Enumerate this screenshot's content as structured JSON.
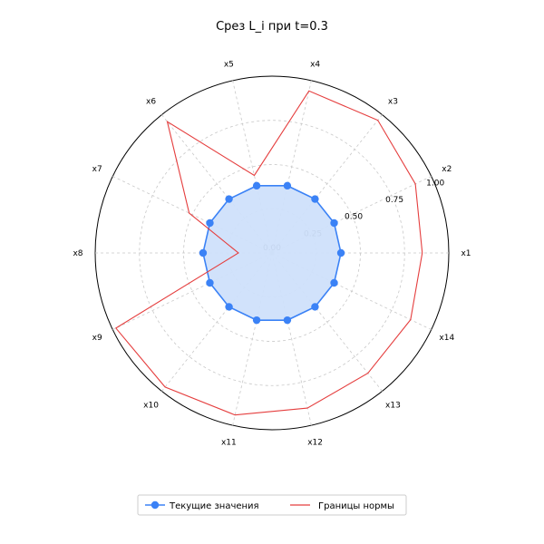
{
  "chart_data": {
    "type": "radar",
    "title": "Срез L_i при t=0.3",
    "categories": [
      "x1",
      "x2",
      "x3",
      "x4",
      "x5",
      "x6",
      "x7",
      "x8",
      "x9",
      "x10",
      "x11",
      "x12",
      "x13",
      "x14"
    ],
    "radial_ticks": [
      0.0,
      0.25,
      0.5,
      0.75,
      1.0
    ],
    "radial_tick_labels": [
      "0.00",
      "0.25",
      "0.50",
      "0.75",
      "1.00"
    ],
    "rlim": [
      0,
      1.0
    ],
    "grid": true,
    "legend_position": "bottom-center",
    "series": [
      {
        "name": "Текущие значения",
        "style": "line-markers-filled",
        "color": "#3b82f6",
        "fill": "#cfe0fb",
        "values": [
          0.39,
          0.39,
          0.39,
          0.39,
          0.39,
          0.39,
          0.39,
          0.39,
          0.39,
          0.39,
          0.39,
          0.39,
          0.39,
          0.39
        ]
      },
      {
        "name": "Границы нормы",
        "style": "line",
        "color": "#e53e3e",
        "values": [
          0.85,
          0.9,
          0.96,
          0.94,
          0.45,
          0.95,
          0.52,
          0.19,
          0.98,
          0.97,
          0.94,
          0.9,
          0.87,
          0.87
        ]
      }
    ]
  }
}
